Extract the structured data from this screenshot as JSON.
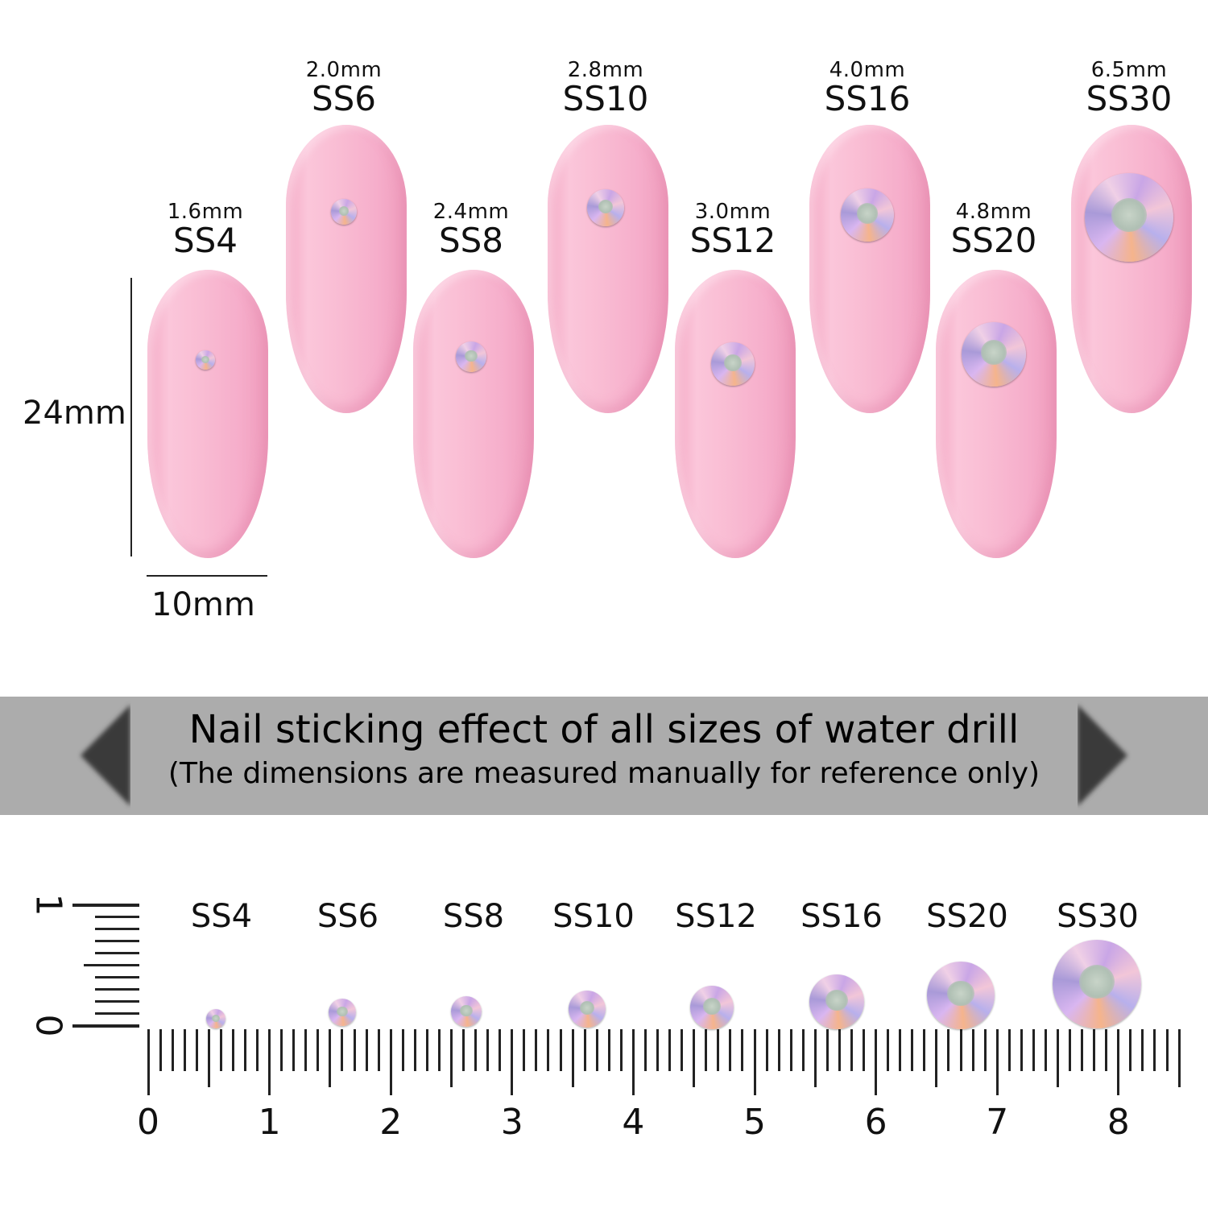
{
  "nails": [
    {
      "size": "SS4",
      "mm": "1.6mm",
      "row": "bottom"
    },
    {
      "size": "SS6",
      "mm": "2.0mm",
      "row": "top"
    },
    {
      "size": "SS8",
      "mm": "2.4mm",
      "row": "bottom"
    },
    {
      "size": "SS10",
      "mm": "2.8mm",
      "row": "top"
    },
    {
      "size": "SS12",
      "mm": "3.0mm",
      "row": "bottom"
    },
    {
      "size": "SS16",
      "mm": "4.0mm",
      "row": "top"
    },
    {
      "size": "SS20",
      "mm": "4.8mm",
      "row": "bottom"
    },
    {
      "size": "SS30",
      "mm": "6.5mm",
      "row": "top"
    }
  ],
  "nail_dimensions": {
    "height": "24mm",
    "width": "10mm"
  },
  "banner": {
    "title": "Nail sticking effect of all sizes of water drill",
    "subtitle": "(The dimensions are measured manually for reference only)"
  },
  "ruler": {
    "labels": [
      "SS4",
      "SS6",
      "SS8",
      "SS10",
      "SS12",
      "SS16",
      "SS20",
      "SS30"
    ],
    "numbers": [
      "0",
      "1",
      "2",
      "3",
      "4",
      "5",
      "6",
      "7",
      "8"
    ],
    "vertical_numbers": [
      "0",
      "1"
    ]
  },
  "colors": {
    "nail_pink": "#f9bcd3",
    "banner_gray": "#acacac"
  }
}
